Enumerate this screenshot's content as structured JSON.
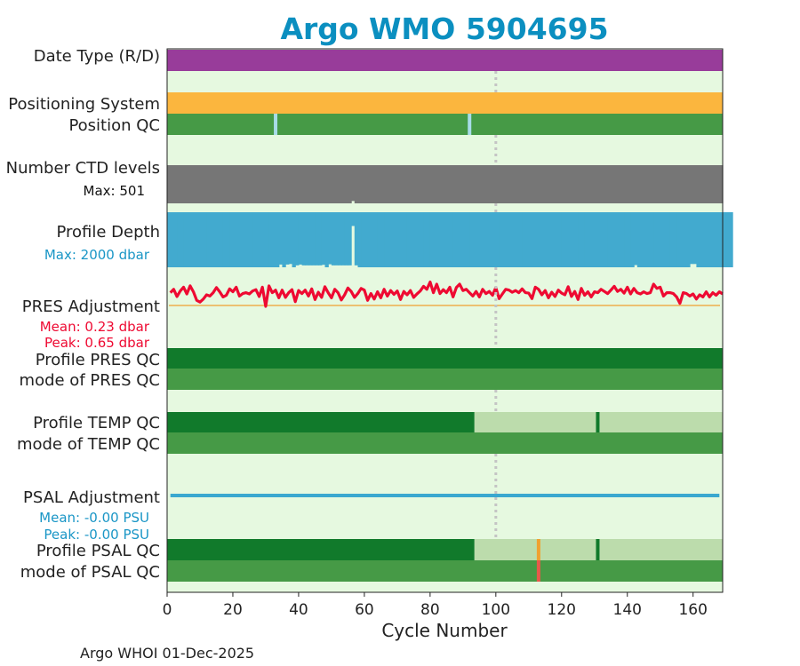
{
  "chart_data": {
    "type": "float-qc-summary",
    "title": "Argo WMO 5904695",
    "xlabel": "Cycle Number",
    "xlim": [
      0,
      169
    ],
    "xticks": [
      0,
      20,
      40,
      60,
      80,
      100,
      120,
      140,
      160
    ],
    "footer": "Argo WHOI 01-Dec-2025",
    "marker_cycle": 100,
    "colors": {
      "title": "#0b8fc0",
      "background": "#e6f9e0",
      "qc_dark_green": "#117a2b",
      "qc_mid_green": "#469a46",
      "qc_light_green": "#bcdcac",
      "qc_light_blue": "#a8dce8",
      "data_mode": "#983c9a",
      "positioning": "#fbb63e",
      "ctd_levels": "#767676",
      "profile_depth": "#42aacf",
      "pres_adj": "#ee0a32",
      "pres_zero": "#f0a030",
      "psal_adj": "#3aa8cf",
      "psal_flag_orange": "#f0a030",
      "psal_flag_red": "#e8594a",
      "marker": "#c4c4c4"
    },
    "rows": {
      "data_mode": {
        "label": "Date Type (R/D)",
        "segments": [
          {
            "from": 0,
            "to": 169,
            "color": "data_mode"
          }
        ]
      },
      "positioning": {
        "label": "Positioning System",
        "segments": [
          {
            "from": 0,
            "to": 169,
            "color": "positioning"
          }
        ]
      },
      "position_qc": {
        "label": "Position QC",
        "segments": [
          {
            "from": 0,
            "to": 169,
            "color": "qc_mid_green"
          }
        ],
        "flags": [
          {
            "cycle": 33,
            "color": "qc_light_blue"
          },
          {
            "cycle": 92,
            "color": "qc_light_blue"
          }
        ]
      },
      "ctd_levels": {
        "label": "Number CTD levels",
        "max_text": "Max: 501",
        "max": 501,
        "values": [
          501,
          501,
          501,
          501,
          501,
          501,
          501,
          501,
          501,
          501,
          501,
          501,
          501,
          501,
          501,
          501,
          501,
          501,
          501,
          501,
          501,
          501,
          501,
          501,
          501,
          501,
          501,
          501,
          501,
          501,
          501,
          501,
          501,
          501,
          501,
          501,
          501,
          501,
          501,
          501,
          501,
          501,
          501,
          501,
          501,
          501,
          501,
          501,
          501,
          501,
          501,
          501,
          501,
          501,
          501,
          501,
          470,
          501,
          501,
          501,
          501,
          501,
          501,
          501,
          501,
          501,
          501,
          501,
          501,
          501,
          501,
          501,
          501,
          501,
          501,
          501,
          501,
          501,
          501,
          501,
          501,
          501,
          501,
          501,
          501,
          501,
          501,
          501,
          501,
          501,
          501,
          501,
          501,
          501,
          501,
          501,
          501,
          501,
          501,
          501,
          501,
          501,
          501,
          501,
          501,
          501,
          501,
          501,
          501,
          501,
          501,
          501,
          501,
          501,
          501,
          501,
          501,
          501,
          501,
          501,
          501,
          501,
          501,
          501,
          501,
          501,
          501,
          501,
          501,
          501,
          501,
          501,
          501,
          501,
          501,
          501,
          501,
          501,
          501,
          501,
          501,
          501,
          501,
          501,
          501,
          501,
          501,
          501,
          501,
          501,
          501,
          501,
          501,
          501,
          501,
          501,
          501,
          501,
          501,
          501,
          501,
          501,
          501,
          501,
          501,
          501,
          501,
          501,
          501
        ]
      },
      "profile_depth": {
        "label": "Profile Depth",
        "max_text": "Max: 2000 dbar",
        "max": 2000,
        "values": [
          2000,
          2000,
          2000,
          2000,
          2000,
          2000,
          2000,
          2000,
          2000,
          2000,
          2000,
          2000,
          2000,
          2000,
          2000,
          2000,
          2000,
          2000,
          2000,
          2000,
          2000,
          2000,
          2000,
          2000,
          2000,
          2000,
          2000,
          2000,
          2000,
          2000,
          2000,
          2000,
          2000,
          2000,
          1900,
          2000,
          1900,
          1880,
          2000,
          1930,
          1900,
          1930,
          1930,
          1930,
          1930,
          1930,
          1930,
          1910,
          2000,
          1890,
          1930,
          1930,
          1930,
          1930,
          1930,
          1930,
          500,
          1930,
          2000,
          2000,
          2000,
          2000,
          2000,
          2000,
          2000,
          2000,
          2000,
          2000,
          2000,
          2000,
          2000,
          2000,
          2000,
          2000,
          2000,
          2000,
          2000,
          2000,
          2000,
          2000,
          2000,
          2000,
          2000,
          2000,
          2000,
          2000,
          2000,
          2000,
          2000,
          2000,
          2000,
          2000,
          2000,
          2000,
          2000,
          2000,
          2000,
          2000,
          2000,
          2000,
          2000,
          2000,
          2000,
          2000,
          2000,
          2000,
          2000,
          2000,
          2000,
          2000,
          2000,
          2000,
          2000,
          2000,
          2000,
          2000,
          2000,
          2000,
          2000,
          2000,
          2000,
          2000,
          2000,
          2000,
          2000,
          2000,
          2000,
          2000,
          2000,
          2000,
          2000,
          2000,
          2000,
          2000,
          2000,
          2000,
          2000,
          2000,
          2000,
          2000,
          2000,
          2000,
          1920,
          2000,
          2000,
          2000,
          2000,
          2000,
          2000,
          2000,
          2000,
          2000,
          2000,
          2000,
          2000,
          2000,
          2000,
          2000,
          2000,
          1880,
          1880,
          2000,
          2000,
          2000,
          2000,
          2000,
          2000,
          2000,
          2000,
          2000,
          2000,
          2000
        ]
      },
      "pres_adj": {
        "label": "PRES Adjustment",
        "mean_text": "Mean: 0.23 dbar",
        "peak_text": "Peak: 0.65 dbar",
        "peak": 0.65,
        "cycle_start": 1,
        "values": [
          0.3,
          0.38,
          0.21,
          0.34,
          0.43,
          0.27,
          0.46,
          0.32,
          0.12,
          0.08,
          0.15,
          0.25,
          0.22,
          0.3,
          0.42,
          0.32,
          0.2,
          0.24,
          0.39,
          0.32,
          0.43,
          0.22,
          0.28,
          0.3,
          0.27,
          0.34,
          0.37,
          0.21,
          0.43,
          -0.02,
          0.46,
          0.3,
          0.36,
          0.18,
          0.36,
          0.19,
          0.3,
          0.37,
          0.09,
          0.35,
          0.28,
          0.36,
          0.22,
          0.39,
          0.14,
          0.31,
          0.19,
          0.44,
          0.3,
          0.18,
          0.38,
          0.3,
          0.13,
          0.25,
          0.41,
          0.33,
          0.19,
          0.28,
          0.4,
          0.36,
          0.12,
          0.28,
          0.15,
          0.32,
          0.18,
          0.38,
          0.22,
          0.35,
          0.26,
          0.34,
          0.14,
          0.33,
          0.25,
          0.35,
          0.19,
          0.27,
          0.34,
          0.45,
          0.38,
          0.55,
          0.3,
          0.5,
          0.28,
          0.37,
          0.3,
          0.43,
          0.2,
          0.42,
          0.5,
          0.35,
          0.38,
          0.3,
          0.22,
          0.33,
          0.2,
          0.38,
          0.28,
          0.33,
          0.24,
          0.42,
          0.16,
          0.27,
          0.38,
          0.36,
          0.31,
          0.35,
          0.3,
          0.39,
          0.3,
          0.29,
          0.16,
          0.43,
          0.38,
          0.25,
          0.35,
          0.18,
          0.31,
          0.21,
          0.36,
          0.29,
          0.25,
          0.44,
          0.21,
          0.33,
          0.14,
          0.4,
          0.24,
          0.32,
          0.2,
          0.32,
          0.3,
          0.38,
          0.33,
          0.28,
          0.36,
          0.45,
          0.33,
          0.38,
          0.29,
          0.43,
          0.27,
          0.4,
          0.3,
          0.27,
          0.32,
          0.28,
          0.3,
          0.5,
          0.4,
          0.43,
          0.22,
          0.3,
          0.3,
          0.28,
          0.2,
          0.05,
          0.3,
          0.28,
          0.22,
          0.27,
          0.15,
          0.25,
          0.2,
          0.32,
          0.2,
          0.3,
          0.24,
          0.32,
          0.27
        ]
      },
      "profile_pres_qc": {
        "label": "Profile PRES QC",
        "segments": [
          {
            "from": 0,
            "to": 169,
            "color": "qc_dark_green"
          }
        ]
      },
      "mode_pres_qc": {
        "label": "mode of PRES QC",
        "segments": [
          {
            "from": 0,
            "to": 169,
            "color": "qc_mid_green"
          }
        ]
      },
      "profile_temp_qc": {
        "label": "Profile TEMP QC",
        "segments": [
          {
            "from": 0,
            "to": 93.5,
            "color": "qc_dark_green"
          },
          {
            "from": 93.5,
            "to": 169,
            "color": "qc_light_green"
          }
        ],
        "flags": [
          {
            "cycle": 131,
            "color": "qc_dark_green"
          }
        ]
      },
      "mode_temp_qc": {
        "label": "mode of TEMP QC",
        "segments": [
          {
            "from": 0,
            "to": 169,
            "color": "qc_mid_green"
          }
        ]
      },
      "psal_adj": {
        "label": "PSAL Adjustment",
        "mean_text": "Mean: -0.00 PSU",
        "peak_text": "Peak: -0.00 PSU",
        "value": 0.0,
        "from": 1,
        "to": 168
      },
      "profile_psal_qc": {
        "label": "Profile PSAL QC",
        "segments": [
          {
            "from": 0,
            "to": 93.5,
            "color": "qc_dark_green"
          },
          {
            "from": 93.5,
            "to": 169,
            "color": "qc_light_green"
          }
        ],
        "flags": [
          {
            "cycle": 113,
            "color": "psal_flag_orange"
          },
          {
            "cycle": 131,
            "color": "qc_dark_green"
          }
        ]
      },
      "mode_psal_qc": {
        "label": "mode of PSAL QC",
        "segments": [
          {
            "from": 0,
            "to": 169,
            "color": "qc_mid_green"
          }
        ],
        "flags": [
          {
            "cycle": 113,
            "color": "psal_flag_red"
          }
        ]
      }
    }
  }
}
